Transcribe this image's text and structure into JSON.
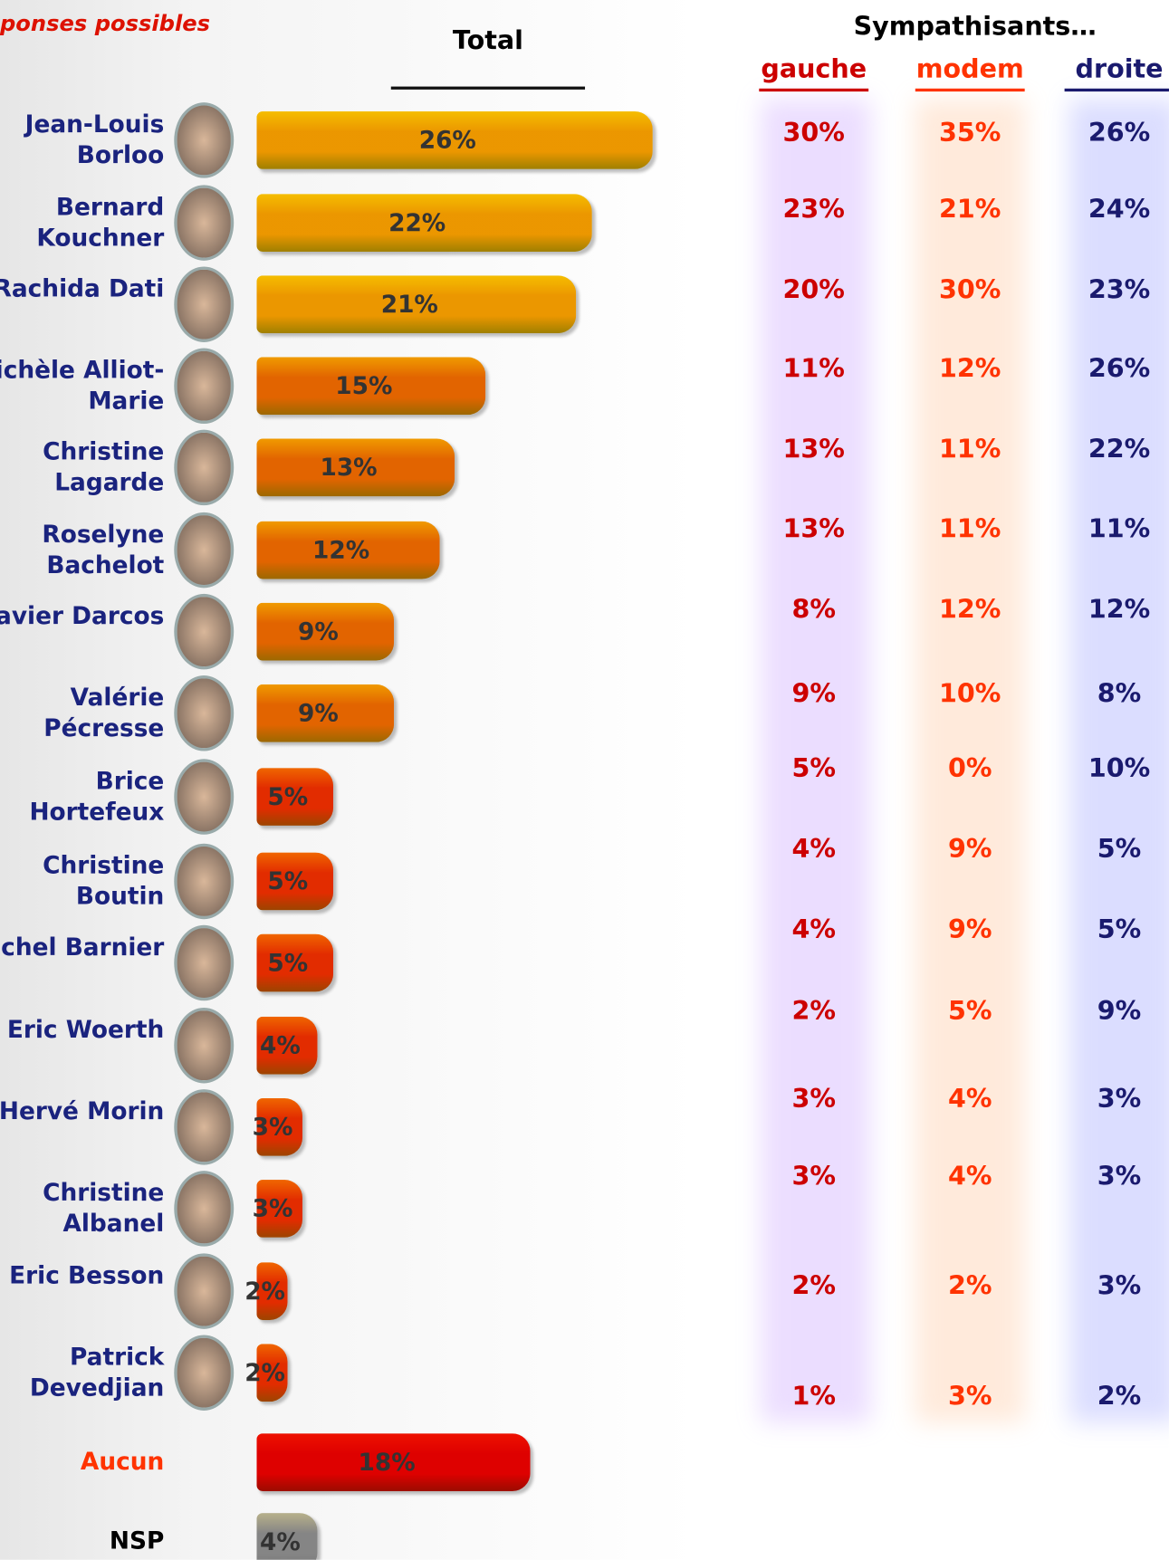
{
  "chart_data": {
    "type": "bar",
    "subtitle": "ponses possibles",
    "total_label": "Total",
    "group_label": "Sympathisants…",
    "categories": [
      "Jean-Louis Borloo",
      "Bernard Kouchner",
      "Rachida Dati",
      "Michèle Alliot-Marie",
      "Christine Lagarde",
      "Roselyne Bachelot",
      "Xavier Darcos",
      "Valérie Pécresse",
      "Brice Hortefeux",
      "Christine Boutin",
      "Michel Barnier",
      "Eric Woerth",
      "Hervé Morin",
      "Christine Albanel",
      "Eric Besson",
      "Patrick Devedjian",
      "Aucun",
      "NSP"
    ],
    "label_colors": [
      "#1a237e",
      "#1a237e",
      "#1a237e",
      "#1a237e",
      "#1a237e",
      "#1a237e",
      "#1a237e",
      "#1a237e",
      "#1a237e",
      "#1a237e",
      "#1a237e",
      "#1a237e",
      "#1a237e",
      "#1a237e",
      "#1a237e",
      "#1a237e",
      "#ff3300",
      "#000000"
    ],
    "values": [
      26,
      22,
      21,
      15,
      13,
      12,
      9,
      9,
      5,
      5,
      5,
      4,
      3,
      3,
      2,
      2,
      18,
      4
    ],
    "value_labels": [
      "26%",
      "22%",
      "21%",
      "15%",
      "13%",
      "12%",
      "9%",
      "9%",
      "5%",
      "5%",
      "5%",
      "4%",
      "3%",
      "3%",
      "2%",
      "2%",
      "18%",
      "4%"
    ],
    "colors": [
      "#f5c400",
      "#f5c400",
      "#f5c400",
      "#f0a000",
      "#f0a000",
      "#f0a000",
      "#f0a000",
      "#f0a000",
      "#f06a00",
      "#f06a00",
      "#f06a00",
      "#f06a00",
      "#f06a00",
      "#f06a00",
      "#f06a00",
      "#f06a00",
      "#ee1100",
      "#b8b8b8"
    ],
    "columns": [
      {
        "name": "gauche",
        "color": "#cc0000",
        "values": [
          30,
          23,
          20,
          11,
          13,
          13,
          8,
          9,
          5,
          4,
          4,
          2,
          3,
          3,
          2,
          1
        ],
        "value_labels": [
          "30%",
          "23%",
          "20%",
          "11%",
          "13%",
          "13%",
          "8%",
          "9%",
          "5%",
          "4%",
          "4%",
          "2%",
          "3%",
          "3%",
          "2%",
          "1%"
        ]
      },
      {
        "name": "modem",
        "color": "#ff3300",
        "values": [
          35,
          21,
          30,
          12,
          11,
          11,
          12,
          10,
          0,
          9,
          9,
          5,
          4,
          4,
          2,
          3
        ],
        "value_labels": [
          "35%",
          "21%",
          "30%",
          "12%",
          "11%",
          "11%",
          "12%",
          "10%",
          "0%",
          "9%",
          "9%",
          "5%",
          "4%",
          "4%",
          "2%",
          "3%"
        ]
      },
      {
        "name": "droite",
        "color": "#1a1a6e",
        "values": [
          26,
          24,
          23,
          26,
          22,
          11,
          12,
          8,
          10,
          5,
          5,
          9,
          3,
          3,
          3,
          2
        ],
        "value_labels": [
          "26%",
          "24%",
          "23%",
          "26%",
          "22%",
          "11%",
          "12%",
          "8%",
          "10%",
          "5%",
          "5%",
          "9%",
          "3%",
          "3%",
          "3%",
          "2%"
        ]
      }
    ]
  }
}
